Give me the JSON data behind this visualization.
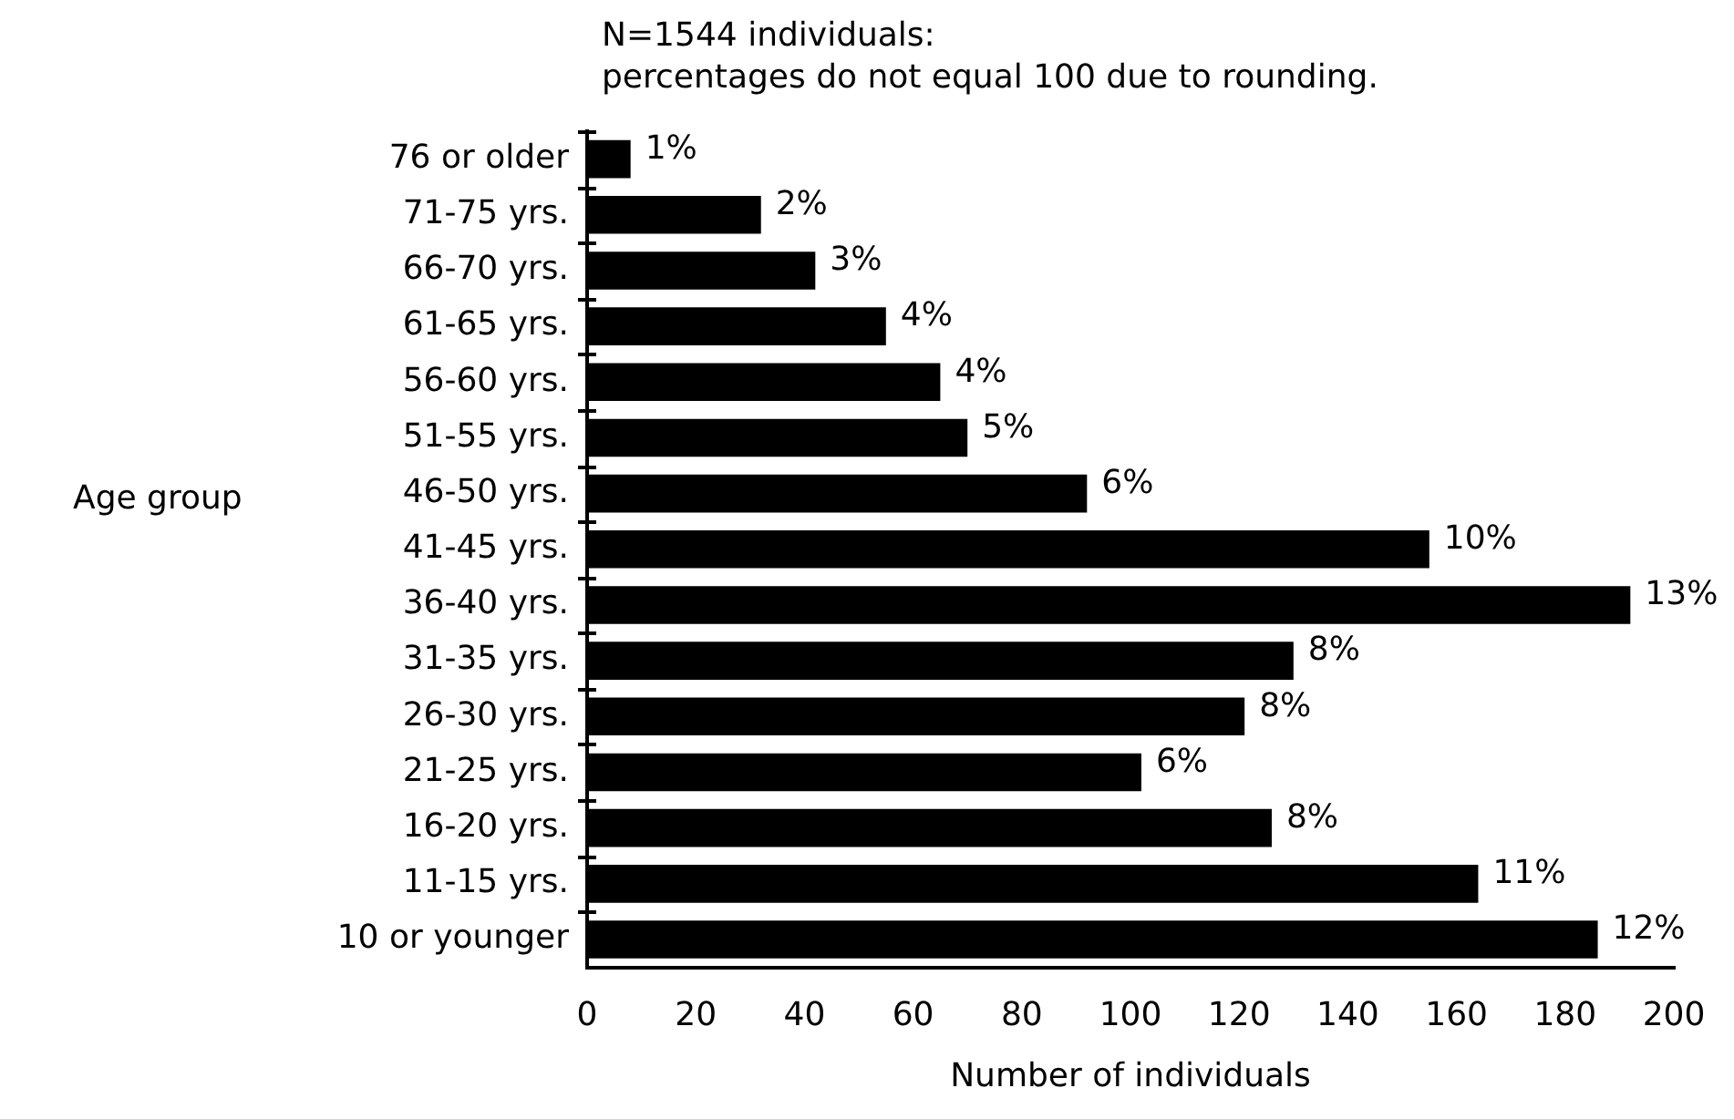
{
  "chart_data": {
    "type": "bar",
    "orientation": "horizontal",
    "title": "N=1544 individuals:",
    "subtitle": "percentages do not equal 100 due to rounding.",
    "xlabel": "Number of individuals",
    "ylabel": "Age group",
    "categories": [
      "76 or older",
      "71-75 yrs.",
      "66-70 yrs.",
      "61-65 yrs.",
      "56-60 yrs.",
      "51-55 yrs.",
      "46-50 yrs.",
      "41-45 yrs.",
      "36-40 yrs.",
      "31-35 yrs.",
      "26-30 yrs.",
      "21-25 yrs.",
      "16-20 yrs.",
      "11-15 yrs.",
      "10 or younger"
    ],
    "values": [
      8,
      32,
      42,
      55,
      65,
      70,
      92,
      155,
      192,
      130,
      121,
      102,
      126,
      164,
      186
    ],
    "annotations": [
      {
        "text": "1%",
        "x": 8,
        "y": "76 or older"
      },
      {
        "text": "2%",
        "x": 32,
        "y": "71-75 yrs."
      },
      {
        "text": "3%",
        "x": 42,
        "y": "66-70 yrs."
      },
      {
        "text": "4%",
        "x": 55,
        "y": "61-65 yrs."
      },
      {
        "text": "4%",
        "x": 65,
        "y": "56-60 yrs."
      },
      {
        "text": "5%",
        "x": 70,
        "y": "51-55 yrs."
      },
      {
        "text": "6%",
        "x": 92,
        "y": "46-50 yrs."
      },
      {
        "text": "10%",
        "x": 155,
        "y": "41-45 yrs."
      },
      {
        "text": "13%",
        "x": 192,
        "y": "36-40 yrs."
      },
      {
        "text": "8%",
        "x": 130,
        "y": "31-35 yrs."
      },
      {
        "text": "8%",
        "x": 121,
        "y": "26-30 yrs."
      },
      {
        "text": "6%",
        "x": 102,
        "y": "21-25 yrs."
      },
      {
        "text": "8%",
        "x": 126,
        "y": "16-20 yrs."
      },
      {
        "text": "11%",
        "x": 164,
        "y": "11-15 yrs."
      },
      {
        "text": "12%",
        "x": 186,
        "y": "10 or younger"
      }
    ],
    "color": "#000000",
    "xlim": [
      0,
      200
    ],
    "xticks": [
      0,
      20,
      40,
      60,
      80,
      100,
      120,
      140,
      160,
      180,
      200
    ],
    "grid": false,
    "legend": false
  }
}
